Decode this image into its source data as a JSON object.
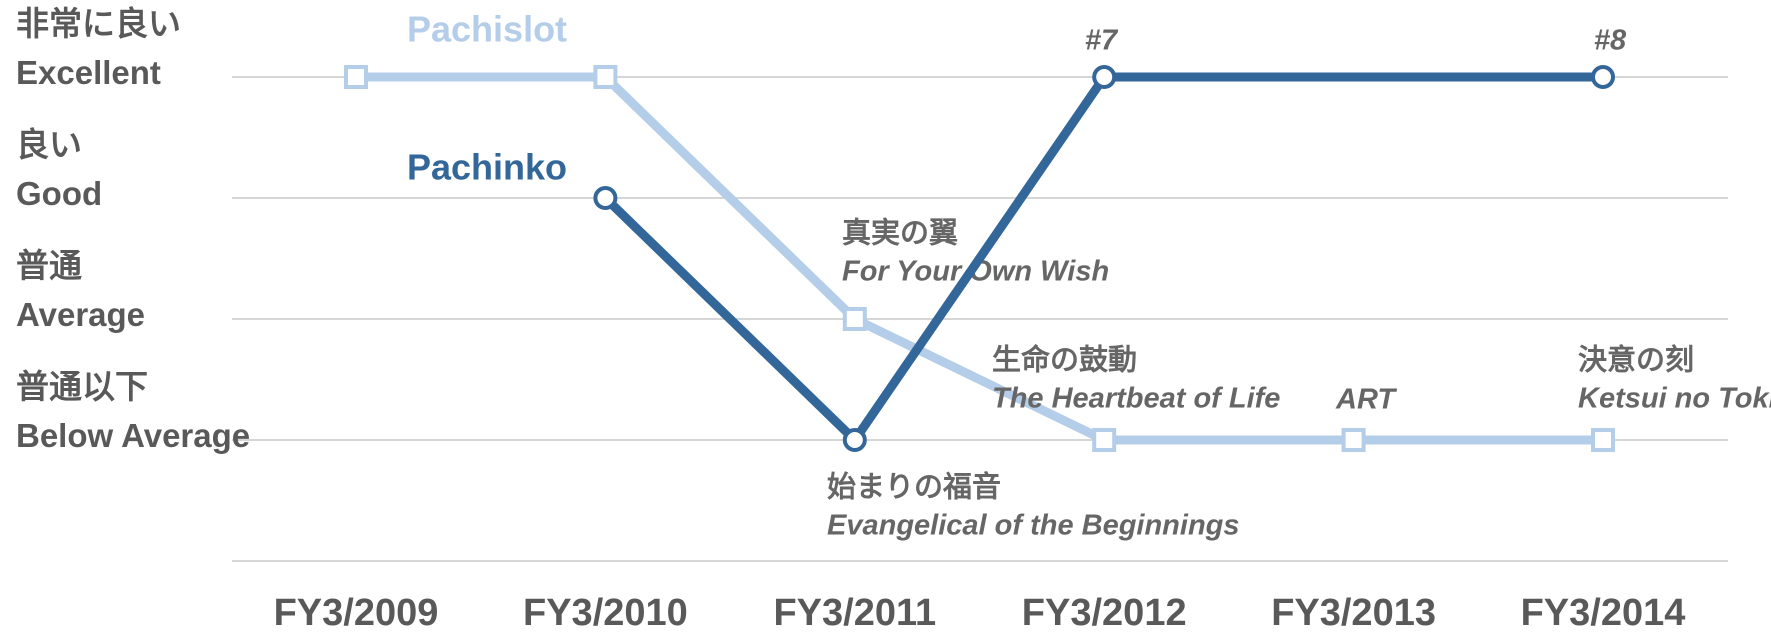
{
  "chart_data": {
    "type": "line",
    "categories": [
      "FY3/2009",
      "FY3/2010",
      "FY3/2011",
      "FY3/2012",
      "FY3/2013",
      "FY3/2014"
    ],
    "ylim": [
      0,
      4
    ],
    "yticks": [
      {
        "value": 4,
        "label": "非常に良い\nExcellent"
      },
      {
        "value": 3,
        "label": "良い\nGood"
      },
      {
        "value": 2,
        "label": "普通\nAverage"
      },
      {
        "value": 1,
        "label": "普通以下\nBelow Average"
      }
    ],
    "grid": true,
    "series": [
      {
        "name": "Pachislot",
        "color": "#b4cde8",
        "marker": "square",
        "x": [
          "FY3/2009",
          "FY3/2010",
          "FY3/2011",
          "FY3/2012",
          "FY3/2013",
          "FY3/2014"
        ],
        "values": [
          4,
          4,
          2,
          1,
          1,
          1
        ]
      },
      {
        "name": "Pachinko",
        "color": "#336699",
        "marker": "circle",
        "x": [
          "FY3/2010",
          "FY3/2011",
          "FY3/2012",
          "FY3/2014"
        ],
        "values": [
          3,
          1,
          4,
          4
        ]
      }
    ],
    "annotations": [
      [
        "#7"
      ],
      [
        "#8"
      ],
      [
        "真実の翼",
        "For Your Own Wish"
      ],
      [
        "生命の鼓動",
        "The Heartbeat of  Life"
      ],
      [
        "ART"
      ],
      [
        "決意の刻",
        "Ketsui no Toki"
      ],
      [
        "始まりの福音",
        "Evangelical of the Beginnings"
      ]
    ]
  }
}
